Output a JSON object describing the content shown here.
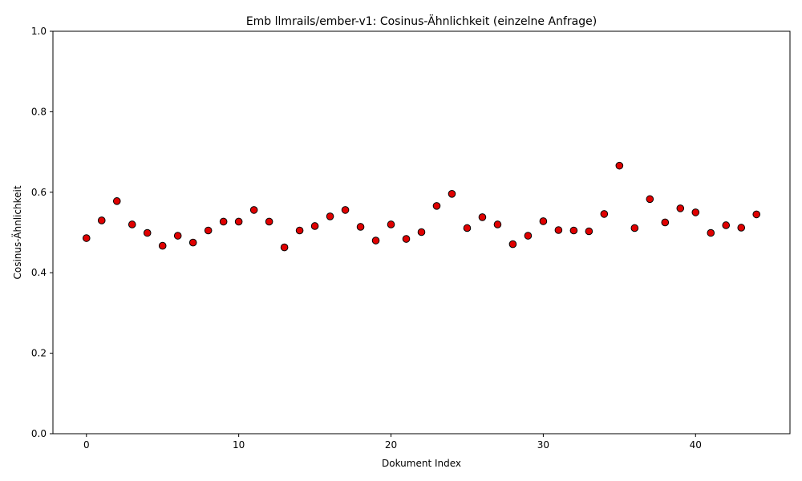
{
  "chart_data": {
    "type": "scatter",
    "title": "Emb llmrails/ember-v1: Cosinus-Ähnlichkeit (einzelne Anfrage)",
    "xlabel": "Dokument Index",
    "ylabel": "Cosinus-Ähnlichkeit",
    "xlim": [
      -2.2,
      46.2
    ],
    "ylim": [
      0,
      1
    ],
    "xticks": [
      0,
      10,
      20,
      30,
      40
    ],
    "yticks": [
      0.0,
      0.2,
      0.4,
      0.6,
      0.8,
      1.0
    ],
    "xtick_labels": [
      "0",
      "10",
      "20",
      "30",
      "40"
    ],
    "ytick_labels": [
      "0.0",
      "0.2",
      "0.4",
      "0.6",
      "0.8",
      "1.0"
    ],
    "grid": false,
    "marker_color": "#e00000",
    "marker_edge_color": "#000000",
    "x": [
      0,
      1,
      2,
      3,
      4,
      5,
      6,
      7,
      8,
      9,
      10,
      11,
      12,
      13,
      14,
      15,
      16,
      17,
      18,
      19,
      20,
      21,
      22,
      23,
      24,
      25,
      26,
      27,
      28,
      29,
      30,
      31,
      32,
      33,
      34,
      35,
      36,
      37,
      38,
      39,
      40,
      41,
      42,
      43,
      44
    ],
    "y": [
      0.486,
      0.53,
      0.578,
      0.52,
      0.499,
      0.467,
      0.492,
      0.475,
      0.505,
      0.527,
      0.527,
      0.556,
      0.527,
      0.463,
      0.505,
      0.516,
      0.54,
      0.556,
      0.514,
      0.48,
      0.52,
      0.484,
      0.501,
      0.566,
      0.596,
      0.511,
      0.538,
      0.52,
      0.471,
      0.492,
      0.528,
      0.506,
      0.505,
      0.503,
      0.546,
      0.666,
      0.511,
      0.583,
      0.525,
      0.56,
      0.55,
      0.499,
      0.518,
      0.512,
      0.545
    ]
  }
}
